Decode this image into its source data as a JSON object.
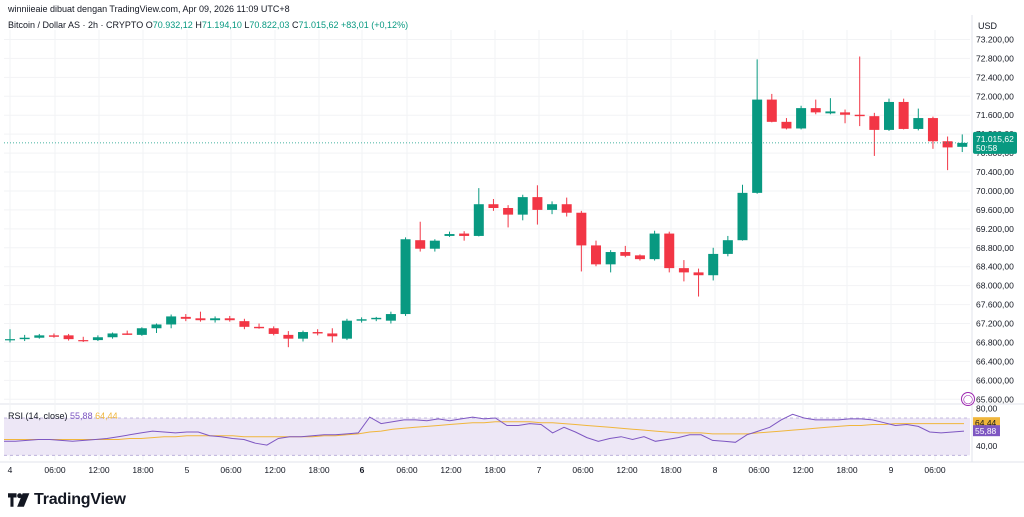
{
  "attribution": "winniieaie dibuat dengan TradingView.com, Apr 09, 2026 11:09 UTC+8",
  "symbol": {
    "name": "Bitcoin / Dollar AS · 2h · CRYPTO",
    "open_label": "O",
    "open": "70.932,12",
    "high_label": "H",
    "high": "71.194,10",
    "low_label": "L",
    "low": "70.822,03",
    "close_label": "C",
    "close": "71.015,62",
    "change": "+83,01 (+0,12%)"
  },
  "currency": "USD",
  "rsi": {
    "label": "RSI (14, close)",
    "value": "55,88",
    "ma_value": "64,44"
  },
  "brand": "TradingView",
  "colors": {
    "up": "#089981",
    "down": "#f23645",
    "rsi": "#7e57c2",
    "rsi_ma": "#f0b63c",
    "rsi_band": "#ede7f6"
  },
  "chart_data": [
    {
      "type": "candlestick",
      "title": "Bitcoin / Dollar AS · 2h · CRYPTO",
      "y_ticks": [
        "73.200,00",
        "72.800,00",
        "72.400,00",
        "72.000,00",
        "71.600,00",
        "71.200,00",
        "70.800,00",
        "70.400,00",
        "70.000,00",
        "69.600,00",
        "69.200,00",
        "68.800,00",
        "68.400,00",
        "68.000,00",
        "67.600,00",
        "67.200,00",
        "66.800,00",
        "66.400,00",
        "66.000,00",
        "65.600,00"
      ],
      "ylim": [
        65500,
        73400
      ],
      "x_ticks": [
        "4",
        "06:00",
        "12:00",
        "18:00",
        "5",
        "06:00",
        "12:00",
        "18:00",
        "6",
        "06:00",
        "12:00",
        "18:00",
        "7",
        "06:00",
        "12:00",
        "18:00",
        "8",
        "06:00",
        "12:00",
        "18:00",
        "9",
        "06:00"
      ],
      "price_label": "71.015,62",
      "countdown": "50:58",
      "candles": [
        {
          "o": 66850,
          "h": 67080,
          "l": 66800,
          "c": 66870
        },
        {
          "o": 66870,
          "h": 66960,
          "l": 66830,
          "c": 66900
        },
        {
          "o": 66900,
          "h": 66980,
          "l": 66880,
          "c": 66950
        },
        {
          "o": 66950,
          "h": 66990,
          "l": 66900,
          "c": 66920
        },
        {
          "o": 66950,
          "h": 66980,
          "l": 66840,
          "c": 66870
        },
        {
          "o": 66850,
          "h": 66920,
          "l": 66810,
          "c": 66840
        },
        {
          "o": 66850,
          "h": 66950,
          "l": 66830,
          "c": 66910
        },
        {
          "o": 66910,
          "h": 67010,
          "l": 66880,
          "c": 66990
        },
        {
          "o": 66990,
          "h": 67050,
          "l": 66960,
          "c": 66960
        },
        {
          "o": 66960,
          "h": 67120,
          "l": 66940,
          "c": 67100
        },
        {
          "o": 67100,
          "h": 67200,
          "l": 67000,
          "c": 67180
        },
        {
          "o": 67180,
          "h": 67390,
          "l": 67100,
          "c": 67350
        },
        {
          "o": 67340,
          "h": 67400,
          "l": 67250,
          "c": 67300
        },
        {
          "o": 67310,
          "h": 67450,
          "l": 67240,
          "c": 67270
        },
        {
          "o": 67270,
          "h": 67350,
          "l": 67220,
          "c": 67310
        },
        {
          "o": 67310,
          "h": 67360,
          "l": 67240,
          "c": 67270
        },
        {
          "o": 67250,
          "h": 67300,
          "l": 67080,
          "c": 67130
        },
        {
          "o": 67130,
          "h": 67200,
          "l": 67090,
          "c": 67100
        },
        {
          "o": 67100,
          "h": 67140,
          "l": 66950,
          "c": 66980
        },
        {
          "o": 66960,
          "h": 67040,
          "l": 66700,
          "c": 66880
        },
        {
          "o": 66880,
          "h": 67050,
          "l": 66820,
          "c": 67020
        },
        {
          "o": 67020,
          "h": 67080,
          "l": 66950,
          "c": 66990
        },
        {
          "o": 66990,
          "h": 67100,
          "l": 66800,
          "c": 66930
        },
        {
          "o": 66880,
          "h": 67300,
          "l": 66850,
          "c": 67260
        },
        {
          "o": 67260,
          "h": 67330,
          "l": 67220,
          "c": 67290
        },
        {
          "o": 67290,
          "h": 67340,
          "l": 67250,
          "c": 67320
        },
        {
          "o": 67260,
          "h": 67450,
          "l": 67200,
          "c": 67400
        },
        {
          "o": 67400,
          "h": 69020,
          "l": 67360,
          "c": 68980
        },
        {
          "o": 68960,
          "h": 69350,
          "l": 68720,
          "c": 68780
        },
        {
          "o": 68780,
          "h": 68980,
          "l": 68720,
          "c": 68950
        },
        {
          "o": 69050,
          "h": 69140,
          "l": 69030,
          "c": 69090
        },
        {
          "o": 69100,
          "h": 69150,
          "l": 68950,
          "c": 69050
        },
        {
          "o": 69050,
          "h": 70060,
          "l": 69040,
          "c": 69720
        },
        {
          "o": 69720,
          "h": 69830,
          "l": 69580,
          "c": 69640
        },
        {
          "o": 69640,
          "h": 69700,
          "l": 69230,
          "c": 69500
        },
        {
          "o": 69500,
          "h": 69920,
          "l": 69380,
          "c": 69870
        },
        {
          "o": 69870,
          "h": 70120,
          "l": 69290,
          "c": 69600
        },
        {
          "o": 69600,
          "h": 69780,
          "l": 69510,
          "c": 69720
        },
        {
          "o": 69720,
          "h": 69860,
          "l": 69460,
          "c": 69540
        },
        {
          "o": 69540,
          "h": 69580,
          "l": 68300,
          "c": 68850
        },
        {
          "o": 68850,
          "h": 68950,
          "l": 68410,
          "c": 68450
        },
        {
          "o": 68450,
          "h": 68750,
          "l": 68280,
          "c": 68710
        },
        {
          "o": 68710,
          "h": 68840,
          "l": 68600,
          "c": 68630
        },
        {
          "o": 68640,
          "h": 68660,
          "l": 68530,
          "c": 68560
        },
        {
          "o": 68560,
          "h": 69160,
          "l": 68530,
          "c": 69100
        },
        {
          "o": 69100,
          "h": 69140,
          "l": 68280,
          "c": 68370
        },
        {
          "o": 68370,
          "h": 68540,
          "l": 68090,
          "c": 68280
        },
        {
          "o": 68280,
          "h": 68360,
          "l": 67770,
          "c": 68220
        },
        {
          "o": 68220,
          "h": 68800,
          "l": 68110,
          "c": 68670
        },
        {
          "o": 68670,
          "h": 69050,
          "l": 68620,
          "c": 68960
        },
        {
          "o": 68960,
          "h": 70130,
          "l": 68950,
          "c": 69960
        },
        {
          "o": 69960,
          "h": 72780,
          "l": 69940,
          "c": 71930
        },
        {
          "o": 71930,
          "h": 72050,
          "l": 71450,
          "c": 71460
        },
        {
          "o": 71460,
          "h": 71540,
          "l": 71300,
          "c": 71320
        },
        {
          "o": 71320,
          "h": 71800,
          "l": 71300,
          "c": 71750
        },
        {
          "o": 71750,
          "h": 71930,
          "l": 71620,
          "c": 71660
        },
        {
          "o": 71640,
          "h": 71960,
          "l": 71620,
          "c": 71680
        },
        {
          "o": 71660,
          "h": 71720,
          "l": 71430,
          "c": 71610
        },
        {
          "o": 71610,
          "h": 72840,
          "l": 71370,
          "c": 71580
        },
        {
          "o": 71580,
          "h": 71650,
          "l": 70740,
          "c": 71290
        },
        {
          "o": 71290,
          "h": 71950,
          "l": 71270,
          "c": 71880
        },
        {
          "o": 71880,
          "h": 71950,
          "l": 71300,
          "c": 71310
        },
        {
          "o": 71310,
          "h": 71740,
          "l": 71280,
          "c": 71540
        },
        {
          "o": 71540,
          "h": 71570,
          "l": 70890,
          "c": 71050
        },
        {
          "o": 71050,
          "h": 71150,
          "l": 70440,
          "c": 70920
        },
        {
          "o": 70932.12,
          "h": 71194.1,
          "l": 70822.03,
          "c": 71015.62
        }
      ]
    },
    {
      "type": "line",
      "title": "RSI (14, close)",
      "y_ticks": [
        "80,00",
        "40,00"
      ],
      "ylim": [
        25,
        85
      ],
      "band": [
        30,
        70
      ],
      "series": [
        {
          "name": "RSI",
          "values": [
            45,
            45,
            46,
            47,
            47,
            46,
            45,
            46,
            47,
            48,
            50,
            52,
            54,
            56,
            55,
            54,
            55,
            55,
            51,
            50,
            48,
            47,
            43,
            41,
            48,
            50,
            50,
            51,
            52,
            52,
            53,
            54,
            71,
            64,
            66,
            68,
            68,
            67,
            69,
            67,
            69,
            71,
            69,
            70,
            62,
            62,
            64,
            63,
            54,
            60,
            55,
            49,
            45,
            48,
            50,
            47,
            50,
            45,
            47,
            49,
            52,
            52,
            46,
            45,
            44,
            52,
            56,
            60,
            68,
            74,
            70,
            68,
            68,
            68,
            69,
            69,
            68,
            65,
            62,
            63,
            61,
            55,
            54,
            55,
            56
          ]
        },
        {
          "name": "MA",
          "values": [
            47,
            47,
            47,
            47,
            47,
            47,
            47,
            47,
            47,
            47,
            47,
            48,
            48,
            49,
            50,
            50,
            51,
            51,
            51,
            51,
            51,
            50,
            50,
            50,
            50,
            50,
            50,
            50,
            51,
            51,
            52,
            53,
            55,
            56,
            58,
            59,
            60,
            61,
            62,
            63,
            64,
            65,
            65,
            66,
            66,
            66,
            66,
            65,
            65,
            64,
            63,
            62,
            61,
            60,
            59,
            58,
            57,
            56,
            55,
            54,
            54,
            54,
            53,
            53,
            53,
            53,
            54,
            55,
            56,
            57,
            58,
            59,
            60,
            61,
            62,
            62,
            63,
            63,
            64,
            64,
            64,
            64,
            64,
            64,
            64
          ]
        }
      ]
    }
  ]
}
